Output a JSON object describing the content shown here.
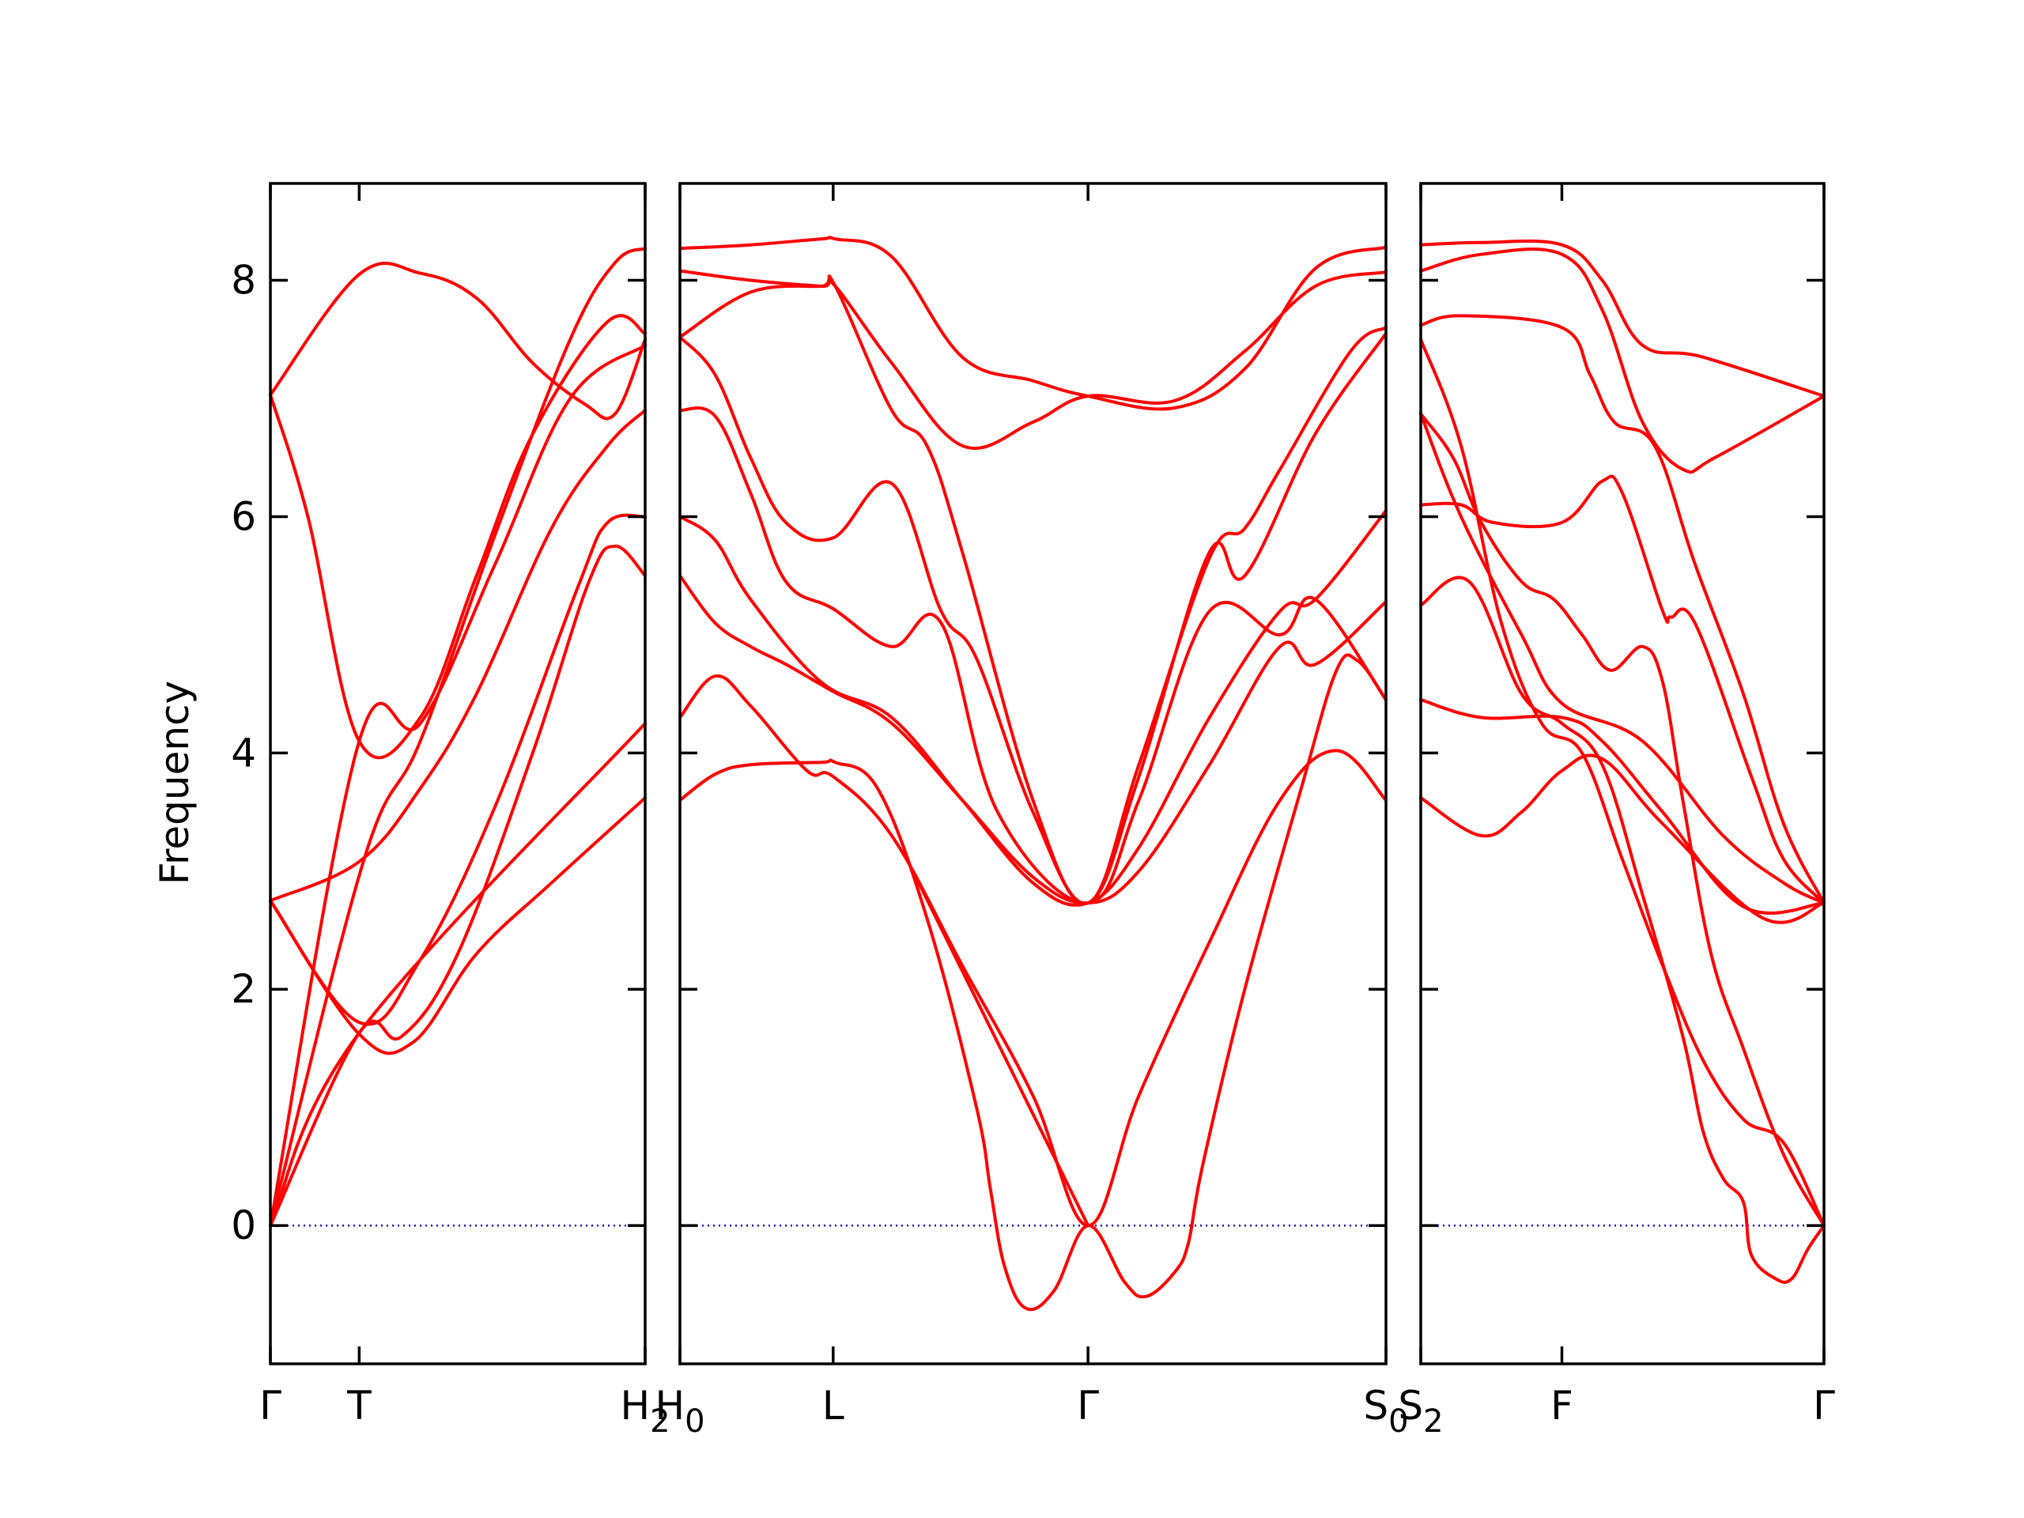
{
  "chart_data": {
    "type": "line",
    "title": "",
    "xlabel": "",
    "ylabel": "Frequency",
    "ylim": [
      -1.17,
      8.82
    ],
    "yticks": [
      0,
      2,
      4,
      6,
      8
    ],
    "ytick_labels": [
      "0",
      "2",
      "4",
      "6",
      "8"
    ],
    "grid": false,
    "legend": "none",
    "colors": {
      "bands": "#ff0000",
      "zero_line": "#0000cc",
      "frame": "#000000"
    },
    "panels": [
      {
        "xlim": [
          0,
          1
        ],
        "xticks": [
          0,
          0.237,
          1
        ],
        "xtick_labels": [
          "Γ",
          "T",
          "H"
        ],
        "xtick_subscripts": [
          "",
          "",
          "2"
        ],
        "series": [
          {
            "x": [
              0,
              0.237,
              1
            ],
            "values": [
              0,
              1.63,
              4.25
            ]
          },
          {
            "x": [
              0,
              0.237,
              0.4,
              0.6,
              0.8,
              1
            ],
            "values": [
              0,
              4.1,
              4.25,
              5.6,
              7.0,
              7.45
            ]
          },
          {
            "x": [
              0,
              0.237,
              0.4,
              0.55,
              0.7,
              0.84,
              0.92,
              1
            ],
            "values": [
              7.03,
              8.05,
              8.06,
              7.85,
              7.3,
              6.95,
              6.87,
              7.5
            ]
          },
          {
            "x": [
              0,
              0.1,
              0.237,
              0.4,
              0.55,
              0.7,
              0.9,
              1
            ],
            "values": [
              7.03,
              6.0,
              4.1,
              4.3,
              5.5,
              6.7,
              7.65,
              7.55
            ]
          },
          {
            "x": [
              0,
              0.25,
              0.4,
              0.6,
              0.8,
              0.92,
              1
            ],
            "values": [
              0,
              3.1,
              4.1,
              5.85,
              7.5,
              8.15,
              8.27
            ]
          },
          {
            "x": [
              0,
              0.237,
              0.4,
              0.55,
              0.75,
              0.9,
              1
            ],
            "values": [
              2.75,
              3.08,
              3.7,
              4.5,
              5.9,
              6.6,
              6.9
            ]
          },
          {
            "x": [
              0,
              0.237,
              0.4,
              0.6,
              0.82,
              0.9,
              1
            ],
            "values": [
              2.75,
              1.72,
              2.25,
              3.55,
              5.4,
              5.95,
              6.0
            ]
          },
          {
            "x": [
              0,
              0.237,
              0.35,
              0.5,
              0.7,
              0.85,
              0.92,
              1
            ],
            "values": [
              0,
              1.63,
              1.6,
              2.3,
              4.0,
              5.45,
              5.75,
              5.5
            ]
          },
          {
            "x": [
              0,
              0.237,
              0.38,
              0.55,
              0.75,
              1
            ],
            "values": [
              2.75,
              1.62,
              1.55,
              2.3,
              2.9,
              3.62
            ]
          }
        ]
      },
      {
        "xlim": [
          0,
          1
        ],
        "xticks": [
          0,
          0.217,
          0.578,
          1
        ],
        "xtick_labels": [
          "H",
          "L",
          "Γ",
          "S"
        ],
        "xtick_subscripts": [
          "0",
          "",
          "",
          "0"
        ],
        "series": [
          {
            "x": [
              0,
              0.1,
              0.2,
              0.22,
              0.3,
              0.4,
              0.5,
              0.578,
              0.7,
              0.8,
              0.9,
              1
            ],
            "values": [
              8.27,
              8.3,
              8.35,
              8.35,
              8.2,
              7.35,
              7.15,
              7.02,
              6.92,
              7.25,
              8.1,
              8.28
            ]
          },
          {
            "x": [
              0,
              0.1,
              0.2,
              0.22,
              0.3,
              0.4,
              0.5,
              0.578,
              0.7,
              0.8,
              0.9,
              1
            ],
            "values": [
              8.08,
              8.0,
              7.95,
              7.95,
              7.3,
              6.6,
              6.8,
              7.02,
              6.98,
              7.4,
              7.95,
              8.07
            ]
          },
          {
            "x": [
              0,
              0.1,
              0.2,
              0.22,
              0.3,
              0.35,
              0.4,
              0.5,
              0.578,
              0.65,
              0.75,
              0.8,
              0.85,
              0.95,
              1
            ],
            "values": [
              7.52,
              7.9,
              7.95,
              7.95,
              6.9,
              6.6,
              5.7,
              3.6,
              2.73,
              3.9,
              5.65,
              5.9,
              6.4,
              7.4,
              7.6
            ]
          },
          {
            "x": [
              0,
              0.05,
              0.1,
              0.15,
              0.217,
              0.3,
              0.37,
              0.42,
              0.5,
              0.578,
              0.65,
              0.75,
              0.8,
              0.9,
              1
            ],
            "values": [
              7.52,
              7.2,
              6.5,
              5.95,
              5.82,
              6.28,
              5.2,
              4.8,
              3.5,
              2.73,
              3.8,
              5.7,
              5.5,
              6.7,
              7.55
            ]
          },
          {
            "x": [
              0,
              0.05,
              0.1,
              0.15,
              0.217,
              0.3,
              0.37,
              0.45,
              0.578,
              0.65,
              0.75,
              0.85,
              0.9,
              1
            ],
            "values": [
              6.9,
              6.85,
              6.2,
              5.45,
              5.22,
              4.9,
              5.1,
              3.5,
              2.73,
              3.6,
              5.2,
              5.0,
              5.3,
              4.45
            ]
          },
          {
            "x": [
              0,
              0.05,
              0.1,
              0.2,
              0.3,
              0.4,
              0.5,
              0.578,
              0.65,
              0.75,
              0.85,
              0.9,
              1
            ],
            "values": [
              6.0,
              5.8,
              5.3,
              4.6,
              4.3,
              3.6,
              2.9,
              2.73,
              3.2,
              4.3,
              5.2,
              5.3,
              6.05
            ]
          },
          {
            "x": [
              0,
              0.05,
              0.1,
              0.15,
              0.217,
              0.3,
              0.4,
              0.5,
              0.578,
              0.65,
              0.75,
              0.85,
              0.9,
              1
            ],
            "values": [
              5.5,
              5.1,
              4.9,
              4.75,
              4.52,
              4.25,
              3.6,
              2.95,
              2.73,
              3.0,
              3.9,
              4.9,
              4.75,
              5.28
            ]
          },
          {
            "x": [
              0,
              0.05,
              0.1,
              0.18,
              0.217,
              0.3,
              0.4,
              0.5,
              0.578,
              0.65,
              0.75,
              0.85,
              0.93,
              1
            ],
            "values": [
              4.3,
              4.65,
              4.4,
              3.85,
              3.8,
              3.3,
              2.2,
              1.1,
              0.0,
              1.1,
              2.4,
              3.6,
              4.02,
              3.6
            ]
          },
          {
            "x": [
              0,
              0.05,
              0.1,
              0.2,
              0.22,
              0.28,
              0.35,
              0.42,
              0.44,
              0.46,
              0.49,
              0.53,
              0.578,
              0.63,
              0.66,
              0.7,
              0.72,
              0.74,
              0.8,
              0.88,
              0.93,
              0.96,
              1
            ],
            "values": [
              3.6,
              3.82,
              3.9,
              3.92,
              3.92,
              3.7,
              2.6,
              1.0,
              0.3,
              -0.35,
              -0.7,
              -0.55,
              0.0,
              -0.48,
              -0.6,
              -0.4,
              -0.15,
              0.5,
              2.0,
              3.7,
              4.7,
              4.78,
              4.45
            ]
          },
          {
            "x": [
              0.33,
              0.578
            ],
            "values": [
              3.0,
              0.0
            ]
          }
        ]
      },
      {
        "xlim": [
          0,
          1
        ],
        "xticks": [
          0,
          0.35,
          1
        ],
        "xtick_labels": [
          "S",
          "F",
          "Γ"
        ],
        "xtick_subscripts": [
          "2",
          "",
          ""
        ],
        "series": [
          {
            "x": [
              0,
              0.15,
              0.35,
              0.45,
              0.55,
              0.7,
              1
            ],
            "values": [
              8.3,
              8.32,
              8.3,
              8.0,
              7.45,
              7.35,
              7.02
            ]
          },
          {
            "x": [
              0,
              0.15,
              0.35,
              0.45,
              0.55,
              0.65,
              0.73,
              1
            ],
            "values": [
              8.08,
              8.22,
              8.22,
              7.75,
              6.8,
              6.4,
              6.5,
              7.02
            ]
          },
          {
            "x": [
              0,
              0.1,
              0.35,
              0.42,
              0.48,
              0.58,
              0.68,
              0.8,
              0.9,
              1
            ],
            "values": [
              7.62,
              7.7,
              7.6,
              7.2,
              6.8,
              6.6,
              5.6,
              4.5,
              3.4,
              2.73
            ]
          },
          {
            "x": [
              0,
              0.1,
              0.18,
              0.35,
              0.45,
              0.5,
              0.6,
              0.62,
              0.68,
              0.82,
              0.9,
              1
            ],
            "values": [
              6.1,
              6.1,
              5.95,
              5.95,
              6.3,
              6.2,
              5.2,
              5.15,
              5.1,
              3.8,
              3.1,
              2.73
            ]
          },
          {
            "x": [
              0,
              0.08,
              0.15,
              0.25,
              0.33,
              0.4,
              0.47,
              0.55,
              0.6,
              0.65,
              0.72,
              0.8,
              0.9,
              1
            ],
            "values": [
              6.87,
              6.5,
              5.95,
              5.45,
              5.3,
              5.0,
              4.7,
              4.9,
              4.6,
              3.6,
              2.3,
              1.5,
              0.6,
              0.0
            ]
          },
          {
            "x": [
              0,
              0.1,
              0.2,
              0.3,
              0.4,
              0.5,
              0.6,
              0.7,
              0.8,
              0.9,
              1
            ],
            "values": [
              7.5,
              6.6,
              5.1,
              4.25,
              4.0,
              3.1,
              2.2,
              1.4,
              0.9,
              0.7,
              0.0
            ]
          },
          {
            "x": [
              0,
              0.12,
              0.25,
              0.35,
              0.45,
              0.55,
              0.65,
              0.7,
              0.75,
              0.8,
              0.82,
              0.88,
              0.92,
              0.96,
              1
            ],
            "values": [
              5.25,
              5.45,
              4.5,
              4.25,
              3.9,
              2.8,
              1.6,
              0.8,
              0.4,
              0.2,
              -0.25,
              -0.45,
              -0.45,
              -0.2,
              0.0
            ]
          },
          {
            "x": [
              0,
              0.15,
              0.35,
              0.45,
              0.6,
              0.8,
              1
            ],
            "values": [
              4.45,
              4.3,
              4.3,
              4.1,
              3.5,
              2.7,
              2.73
            ]
          },
          {
            "x": [
              0,
              0.15,
              0.25,
              0.35,
              0.45,
              0.6,
              0.85,
              1
            ],
            "values": [
              3.62,
              3.3,
              3.5,
              3.85,
              3.95,
              3.4,
              2.6,
              2.73
            ]
          },
          {
            "x": [
              0,
              0.1,
              0.25,
              0.35,
              0.55,
              0.75,
              0.9,
              1
            ],
            "values": [
              6.87,
              6.0,
              5.0,
              4.42,
              4.1,
              3.3,
              2.9,
              2.73
            ]
          }
        ]
      }
    ]
  }
}
